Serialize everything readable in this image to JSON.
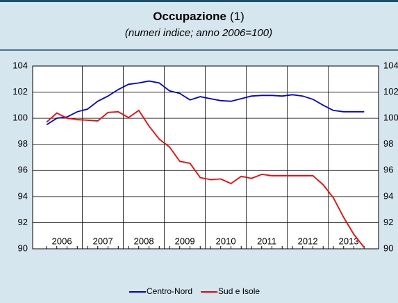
{
  "chart_data": {
    "type": "line",
    "title": "Occupazione",
    "title_note": "(1)",
    "subtitle": "(numeri indice; anno 2006=100)",
    "categories": [
      "2006",
      null,
      null,
      null,
      "2007",
      null,
      null,
      null,
      "2008",
      null,
      null,
      null,
      "2009",
      null,
      null,
      null,
      "2010",
      null,
      null,
      null,
      "2011",
      null,
      null,
      null,
      "2012",
      null,
      null,
      null,
      "2013",
      null,
      null,
      null
    ],
    "series": [
      {
        "name": "Centro-Nord",
        "color": "#0000e0",
        "values": [
          99.5,
          100.0,
          100.1,
          100.5,
          100.7,
          101.3,
          101.7,
          102.2,
          102.6,
          102.7,
          102.85,
          102.7,
          102.1,
          101.9,
          101.4,
          101.65,
          101.5,
          101.35,
          101.3,
          101.5,
          101.7,
          101.75,
          101.75,
          101.7,
          101.8,
          101.7,
          101.45,
          101.0,
          100.6,
          100.5,
          100.5,
          100.5
        ]
      },
      {
        "name": "Sud e Isole",
        "color": "#ff0000",
        "values": [
          99.7,
          100.4,
          100.0,
          99.9,
          99.85,
          99.8,
          100.45,
          100.5,
          100.05,
          100.6,
          99.4,
          98.4,
          97.8,
          96.7,
          96.55,
          95.45,
          95.3,
          95.35,
          95.0,
          95.55,
          95.4,
          95.7,
          95.6,
          95.6,
          95.6,
          95.6,
          95.6,
          94.9,
          93.9,
          92.4,
          91.1,
          90.1
        ]
      }
    ],
    "ylim": [
      90,
      104
    ],
    "yticks": [
      90,
      92,
      94,
      96,
      98,
      100,
      102,
      104
    ],
    "grid": true,
    "legend": "bottom"
  }
}
